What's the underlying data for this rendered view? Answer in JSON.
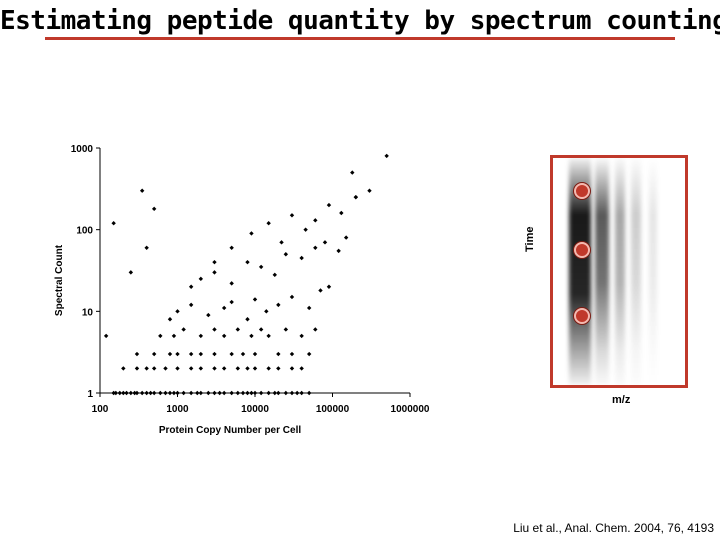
{
  "title": "Estimating peptide quantity by spectrum counting",
  "citation": "Liu et al., Anal. Chem. 2004, 76, 4193",
  "colors": {
    "accent": "#c0392b",
    "points": "#000000"
  },
  "chart_data": {
    "type": "scatter",
    "title": "",
    "xlabel": "Protein Copy Number per Cell",
    "ylabel": "Spectral Count",
    "xscale": "log",
    "yscale": "log",
    "xlim": [
      100,
      1000000
    ],
    "ylim": [
      1,
      1000
    ],
    "xticks": [
      "100",
      "1000",
      "10000",
      "100000",
      "1000000"
    ],
    "yticks": [
      "1",
      "10",
      "100",
      "1000"
    ],
    "points_x": [
      150,
      160,
      180,
      200,
      220,
      250,
      280,
      300,
      350,
      400,
      450,
      500,
      600,
      700,
      800,
      900,
      1000,
      1200,
      1500,
      1800,
      2000,
      2500,
      3000,
      3500,
      4000,
      5000,
      6000,
      7000,
      8000,
      9000,
      10000,
      12000,
      15000,
      18000,
      20000,
      25000,
      30000,
      35000,
      40000,
      50000,
      200,
      300,
      400,
      500,
      700,
      1000,
      1500,
      2000,
      3000,
      4000,
      6000,
      8000,
      10000,
      15000,
      20000,
      30000,
      40000,
      300,
      500,
      800,
      1000,
      1500,
      2000,
      3000,
      5000,
      7000,
      10000,
      20000,
      30000,
      50000,
      600,
      900,
      1200,
      2000,
      3000,
      4000,
      6000,
      9000,
      12000,
      15000,
      25000,
      40000,
      60000,
      800,
      1000,
      1500,
      2500,
      4000,
      5000,
      8000,
      10000,
      14000,
      20000,
      30000,
      50000,
      70000,
      90000,
      1500,
      2000,
      3000,
      5000,
      8000,
      12000,
      18000,
      25000,
      40000,
      60000,
      80000,
      120000,
      150000,
      3000,
      5000,
      9000,
      15000,
      22000,
      30000,
      45000,
      60000,
      90000,
      130000,
      200000,
      300000,
      350,
      500,
      150,
      400,
      250,
      120,
      200000,
      500000,
      180000
    ],
    "points_y": [
      1,
      1,
      1,
      1,
      1,
      1,
      1,
      1,
      1,
      1,
      1,
      1,
      1,
      1,
      1,
      1,
      1,
      1,
      1,
      1,
      1,
      1,
      1,
      1,
      1,
      1,
      1,
      1,
      1,
      1,
      1,
      1,
      1,
      1,
      1,
      1,
      1,
      1,
      1,
      1,
      2,
      2,
      2,
      2,
      2,
      2,
      2,
      2,
      2,
      2,
      2,
      2,
      2,
      2,
      2,
      2,
      2,
      3,
      3,
      3,
      3,
      3,
      3,
      3,
      3,
      3,
      3,
      3,
      3,
      3,
      5,
      5,
      6,
      5,
      6,
      5,
      6,
      5,
      6,
      5,
      6,
      5,
      6,
      8,
      10,
      12,
      9,
      11,
      13,
      8,
      14,
      10,
      12,
      15,
      11,
      18,
      20,
      20,
      25,
      30,
      22,
      40,
      35,
      28,
      50,
      45,
      60,
      70,
      55,
      80,
      40,
      60,
      90,
      120,
      70,
      150,
      100,
      130,
      200,
      160,
      250,
      300,
      300,
      180,
      120,
      60,
      30,
      5,
      250,
      800,
      500
    ],
    "points_x_label": "Protein Copy Number per Cell",
    "points_y_label": "Spectral Count"
  },
  "ms_image": {
    "x_label": "m/z",
    "y_label": "Time"
  }
}
